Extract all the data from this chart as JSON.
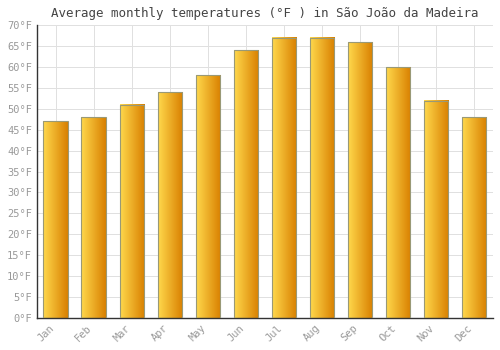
{
  "title": "Average monthly temperatures (°F ) in São João da Madeira",
  "months": [
    "Jan",
    "Feb",
    "Mar",
    "Apr",
    "May",
    "Jun",
    "Jul",
    "Aug",
    "Sep",
    "Oct",
    "Nov",
    "Dec"
  ],
  "values": [
    47,
    48,
    51,
    54,
    58,
    64,
    67,
    67,
    66,
    60,
    52,
    48
  ],
  "ylim": [
    0,
    70
  ],
  "yticks": [
    0,
    5,
    10,
    15,
    20,
    25,
    30,
    35,
    40,
    45,
    50,
    55,
    60,
    65,
    70
  ],
  "ytick_labels": [
    "0°F",
    "5°F",
    "10°F",
    "15°F",
    "20°F",
    "25°F",
    "30°F",
    "35°F",
    "40°F",
    "45°F",
    "50°F",
    "55°F",
    "60°F",
    "65°F",
    "70°F"
  ],
  "background_color": "#ffffff",
  "grid_color": "#e0e0e0",
  "bar_color_left": "#FFD966",
  "bar_color_right": "#E08000",
  "bar_border_color": "#999977",
  "bar_width": 0.65,
  "title_fontsize": 9,
  "tick_fontsize": 7.5,
  "tick_color": "#999999",
  "font_family": "monospace",
  "figsize": [
    5.0,
    3.5
  ],
  "dpi": 100
}
